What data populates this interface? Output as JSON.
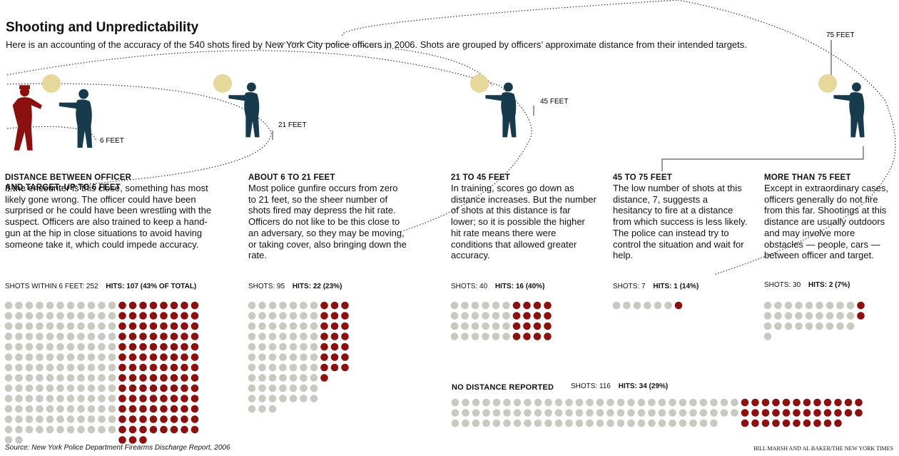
{
  "header": {
    "title": "Shooting and Unpredictability",
    "subtitle": "Here is an accounting of the accuracy of the 540 shots fired by New York City police officers in 2006. Shots are grouped by officers’ approximate distance from their intended targets."
  },
  "distance_labels": [
    "6 FEET",
    "21 FEET",
    "45 FEET",
    "75 FEET"
  ],
  "groups": [
    {
      "heading": "DISTANCE BETWEEN OFFICER AND TARGET: UP TO 6 FEET",
      "text": "If the encounter is this close, something has most likely gone wrong. The officer could have been surprised or he could have been wrestling with the suspect. Officers are also trained to keep a hand-gun at the hip in close situations to avoid having someone take it, which could impede accuracy.",
      "shots_label": "SHOTS WITHIN 6 FEET:",
      "shots": 252,
      "hits_label": "HITS:",
      "hits": 107,
      "hits_note": "(43% OF TOTAL)"
    },
    {
      "heading": "ABOUT 6 TO 21 FEET",
      "text": "Most police gunfire occurs from zero to 21 feet, so the sheer number of shots fired may depress the hit rate. Officers do not like to be this close to an adversary, so they may be moving, or taking cover, also bringing down the rate.",
      "shots_label": "SHOTS:",
      "shots": 95,
      "hits_label": "HITS:",
      "hits": 22,
      "hits_note": "(23%)"
    },
    {
      "heading": "21 TO 45 FEET",
      "text": "In training, scores go down as distance increases. But the number of shots at this distance is far lower; so it is possible the higher hit rate means there were conditions that allowed greater accuracy.",
      "shots_label": "SHOTS:",
      "shots": 40,
      "hits_label": "HITS:",
      "hits": 16,
      "hits_note": "(40%)"
    },
    {
      "heading": "45 TO 75 FEET",
      "text": "The low number of shots at this distance, 7, suggests a hesitancy to fire at a distance from which success is less likely. The police can instead try to control the situation and wait for help.",
      "shots_label": "SHOTS:",
      "shots": 7,
      "hits_label": "HITS:",
      "hits": 1,
      "hits_note": "(14%)"
    },
    {
      "heading": "MORE THAN 75 FEET",
      "text": "Except in extraordinary cases, officers generally do not fire from this far. Shootings at this distance are usually outdoors and may involve more obstacles — people, cars — between officer and target.",
      "shots_label": "SHOTS:",
      "shots": 30,
      "hits_label": "HITS:",
      "hits": 2,
      "hits_note": "(7%)"
    },
    {
      "heading": "NO DISTANCE REPORTED",
      "shots_label": "SHOTS:",
      "shots": 116,
      "hits_label": "HITS:",
      "hits": 34,
      "hits_note": "(29%)"
    }
  ],
  "footer": {
    "source": "Source: New York Police Department Firearms Discharge Report, 2006",
    "credit": "BILL MARSH AND AL BAKER/THE NEW YORK TIMES"
  }
}
